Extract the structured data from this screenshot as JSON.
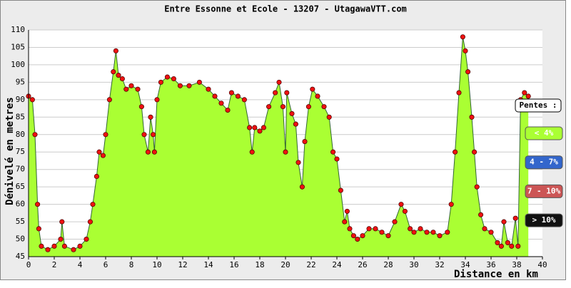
{
  "chart_data": {
    "type": "area",
    "title": "Entre Essonne et Ecole - 13207 - UtagawaVTT.com",
    "y_label": "Dénivelé en metres",
    "x_label": "Distance en km",
    "x": [
      0,
      0.3,
      0.5,
      0.7,
      0.8,
      1.0,
      1.5,
      2.0,
      2.5,
      2.6,
      2.8,
      3.5,
      4.0,
      4.5,
      4.8,
      5.0,
      5.3,
      5.5,
      5.8,
      6.0,
      6.3,
      6.6,
      6.8,
      7.0,
      7.3,
      7.6,
      8.0,
      8.5,
      8.8,
      9.0,
      9.3,
      9.5,
      9.7,
      9.8,
      10.0,
      10.3,
      10.8,
      11.3,
      11.8,
      12.5,
      13.3,
      14.0,
      14.5,
      15.0,
      15.5,
      15.8,
      16.3,
      16.8,
      17.2,
      17.4,
      17.6,
      18.0,
      18.3,
      18.7,
      19.2,
      19.5,
      19.8,
      20.0,
      20.1,
      20.5,
      20.8,
      21.0,
      21.3,
      21.5,
      21.8,
      22.1,
      22.5,
      23.0,
      23.4,
      23.7,
      24.0,
      24.3,
      24.6,
      24.8,
      25.0,
      25.3,
      25.6,
      26.0,
      26.5,
      27.0,
      27.5,
      28.0,
      28.5,
      29.0,
      29.3,
      29.7,
      30.0,
      30.5,
      31.0,
      31.5,
      32.0,
      32.6,
      32.9,
      33.2,
      33.5,
      33.8,
      34.0,
      34.2,
      34.5,
      34.7,
      34.9,
      35.2,
      35.5,
      36.0,
      36.5,
      36.8,
      37.0,
      37.3,
      37.6,
      37.9,
      38.1,
      38.3,
      38.6,
      38.9
    ],
    "values": [
      91,
      90,
      80,
      60,
      53,
      48,
      47,
      48,
      50,
      55,
      48,
      47,
      48,
      50,
      55,
      60,
      68,
      75,
      74,
      80,
      90,
      98,
      104,
      97,
      96,
      93,
      94,
      93,
      88,
      80,
      75,
      85,
      80,
      75,
      90,
      95,
      96.5,
      96,
      94,
      94,
      95,
      93,
      91,
      89,
      87,
      92,
      91,
      90,
      82,
      75,
      82,
      81,
      82,
      88,
      92,
      95,
      88,
      75,
      92,
      86,
      83,
      72,
      65,
      78,
      88,
      93,
      91,
      88,
      85,
      75,
      73,
      64,
      55,
      58,
      53,
      51,
      50,
      51,
      53,
      53,
      52,
      51,
      55,
      60,
      58,
      53,
      52,
      53,
      52,
      52,
      51,
      52,
      60,
      75,
      92,
      108,
      104,
      98,
      85,
      75,
      65,
      57,
      53,
      52,
      49,
      48,
      55,
      49,
      48,
      56,
      48,
      90,
      92,
      91
    ],
    "color": "#aaff33",
    "line_color": "#336633",
    "marker_color": "#ee1111",
    "xlim": [
      0,
      40
    ],
    "ylim": [
      45,
      110
    ],
    "xticks": [
      0,
      2,
      4,
      6,
      8,
      10,
      12,
      14,
      16,
      18,
      20,
      22,
      24,
      26,
      28,
      30,
      32,
      34,
      36,
      38,
      40
    ],
    "yticks": [
      45,
      50,
      55,
      60,
      65,
      70,
      75,
      80,
      85,
      90,
      95,
      100,
      105,
      110
    ],
    "grid": true,
    "legend_title": "Pentes :",
    "legend": [
      {
        "label": "< 4%",
        "color": "#aaff33"
      },
      {
        "label": "4 - 7%",
        "color": "#3366cc"
      },
      {
        "label": "7 - 10%",
        "color": "#cc5555"
      },
      {
        "label": "> 10%",
        "color": "#111111"
      }
    ]
  }
}
